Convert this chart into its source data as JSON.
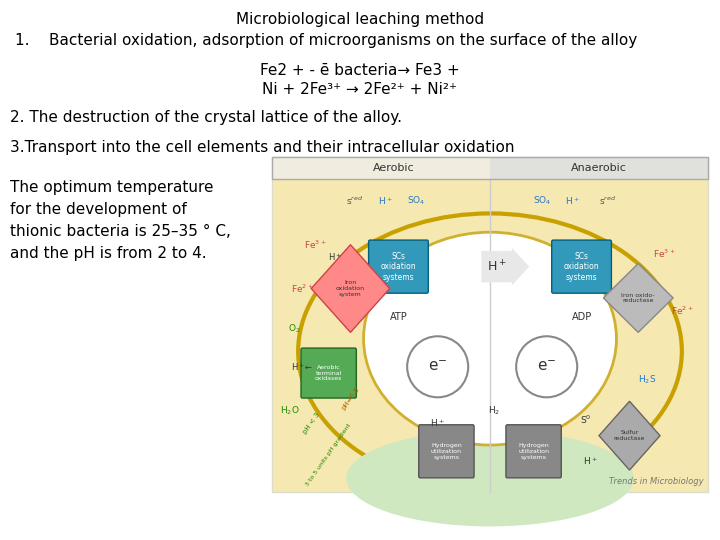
{
  "title": "Microbiological leaching method",
  "item1": "1.    Bacterial oxidation, adsorption of microorganisms on the surface of the alloy",
  "eq_line1": "Fe2 + - ē bacteria→ Fe3 +",
  "eq_line2": "Ni + 2Fe³⁺ → 2Fe²⁺ + Ni²⁺",
  "item2": "2. The destruction of the crystal lattice of the alloy.",
  "item3": "3.Transport into the cell elements and their intracellular oxidation",
  "bottom_text_line1": "The optimum temperature",
  "bottom_text_line2": "for the development of",
  "bottom_text_line3": "thionic bacteria is 25–35 ° C,",
  "bottom_text_line4": "and the pH is from 2 to 4.",
  "bg": "#ffffff",
  "text_color": "#000000",
  "diagram_bg": "#f5e8b0",
  "diagram_border": "#ddddcc",
  "header_aerobic_bg": "#f0ede0",
  "header_anaerobic_bg": "#e0e0dc",
  "outer_ellipse_edge": "#c8a000",
  "outer_ellipse_fill": "#f5e8b0",
  "inner_ellipse_edge": "#d0b030",
  "inner_ellipse_fill": "#ffffff",
  "sc_box_fill": "#3399bb",
  "sc_box_edge": "#006080",
  "iron_diamond_fill": "#ff8888",
  "iron_diamond_edge": "#cc4444",
  "iron_right_fill": "#bbbbbb",
  "iron_right_edge": "#888888",
  "aerobic_box_fill": "#55aa55",
  "aerobic_box_edge": "#226622",
  "h2_box_fill": "#888888",
  "h2_box_edge": "#555555",
  "sulfur_fill": "#aaaaaa",
  "sulfur_edge": "#666666",
  "trends_color": "#777777",
  "fe_color": "#cc4444",
  "green_color": "#228800",
  "blue_color": "#2277cc",
  "font_family": "sans-serif"
}
